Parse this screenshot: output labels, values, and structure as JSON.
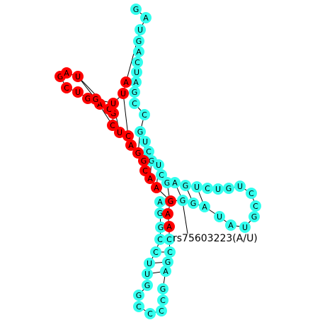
{
  "colors": {
    "highlight": "#ff0000",
    "normal": "#33ffee"
  },
  "annotation": {
    "label": "rs75603223(A/U)"
  },
  "nucleotides": [
    {
      "b": "G",
      "c": "n"
    },
    {
      "b": "A",
      "c": "n"
    },
    {
      "b": "U",
      "c": "n"
    },
    {
      "b": "G",
      "c": "n"
    },
    {
      "b": "A",
      "c": "n"
    },
    {
      "b": "C",
      "c": "n"
    },
    {
      "b": "U",
      "c": "n"
    },
    {
      "b": "A",
      "c": "n"
    },
    {
      "b": "G",
      "c": "n"
    },
    {
      "b": "C",
      "c": "n"
    },
    {
      "b": "C",
      "c": "n"
    },
    {
      "b": "G",
      "c": "n"
    },
    {
      "b": "U",
      "c": "n"
    },
    {
      "b": "C",
      "c": "n"
    },
    {
      "b": "G",
      "c": "n"
    },
    {
      "b": "U",
      "c": "n"
    },
    {
      "b": "C",
      "c": "n"
    },
    {
      "b": "G",
      "c": "n"
    },
    {
      "b": "A",
      "c": "n"
    },
    {
      "b": "G",
      "c": "n"
    },
    {
      "b": "U",
      "c": "n"
    },
    {
      "b": "C",
      "c": "n"
    },
    {
      "b": "U",
      "c": "n"
    },
    {
      "b": "G",
      "c": "n"
    },
    {
      "b": "U",
      "c": "n"
    },
    {
      "b": "C",
      "c": "n"
    },
    {
      "b": "C",
      "c": "n"
    },
    {
      "b": "G",
      "c": "n"
    },
    {
      "b": "U",
      "c": "n"
    },
    {
      "b": "A",
      "c": "n"
    },
    {
      "b": "U",
      "c": "n"
    },
    {
      "b": "A",
      "c": "n"
    },
    {
      "b": "G",
      "c": "n"
    },
    {
      "b": "G",
      "c": "n"
    },
    {
      "b": "C",
      "c": "n"
    },
    {
      "b": "A",
      "c": "n"
    },
    {
      "b": "G",
      "c": "n"
    },
    {
      "b": "G",
      "c": "n"
    },
    {
      "b": "C",
      "c": "n"
    },
    {
      "b": "C",
      "c": "n"
    },
    {
      "b": "U",
      "c": "n"
    },
    {
      "b": "U",
      "c": "n"
    },
    {
      "b": "G",
      "c": "n"
    },
    {
      "b": "G",
      "c": "n"
    },
    {
      "b": "C",
      "c": "n"
    },
    {
      "b": "C",
      "c": "n"
    },
    {
      "b": "C",
      "c": "n"
    },
    {
      "b": "C",
      "c": "n"
    },
    {
      "b": "G",
      "c": "n"
    },
    {
      "b": "A",
      "c": "n"
    },
    {
      "b": "G",
      "c": "n"
    },
    {
      "b": "C",
      "c": "n"
    },
    {
      "b": "C",
      "c": "n"
    },
    {
      "b": "A",
      "c": "h"
    },
    {
      "b": "A",
      "c": "h"
    },
    {
      "b": "G",
      "c": "h"
    },
    {
      "b": "A",
      "c": "h"
    },
    {
      "b": "A",
      "c": "h"
    },
    {
      "b": "C",
      "c": "h"
    },
    {
      "b": "G",
      "c": "h"
    },
    {
      "b": "G",
      "c": "h"
    },
    {
      "b": "A",
      "c": "h"
    },
    {
      "b": "C",
      "c": "h"
    },
    {
      "b": "U",
      "c": "h"
    },
    {
      "b": "C",
      "c": "h"
    },
    {
      "b": "G",
      "c": "h"
    },
    {
      "b": "C",
      "c": "h"
    },
    {
      "b": "A",
      "c": "h"
    },
    {
      "b": "G",
      "c": "h"
    },
    {
      "b": "U",
      "c": "h"
    },
    {
      "b": "C",
      "c": "h"
    },
    {
      "b": "G",
      "c": "h"
    },
    {
      "b": "A",
      "c": "h"
    },
    {
      "b": "U",
      "c": "h"
    },
    {
      "b": "G",
      "c": "h"
    },
    {
      "b": "U",
      "c": "h"
    },
    {
      "b": "U",
      "c": "h"
    },
    {
      "b": "A",
      "c": "h"
    }
  ]
}
